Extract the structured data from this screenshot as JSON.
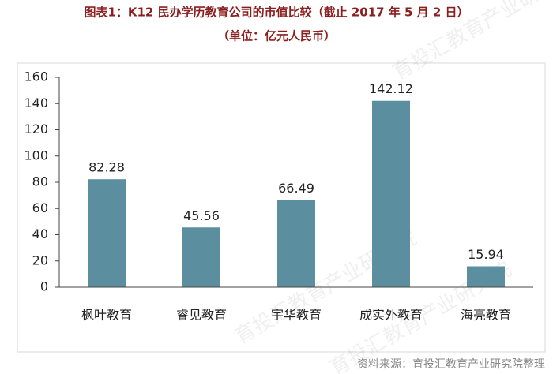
{
  "chart_data": {
    "type": "bar",
    "title": "图表1：K12 民办学历教育公司的市值比较（截止 2017 年 5 月 2 日）",
    "subtitle": "（单位：亿元人民币）",
    "categories": [
      "枫叶教育",
      "睿见教育",
      "宇华教育",
      "成实外教育",
      "海亮教育"
    ],
    "values": [
      82.28,
      45.56,
      66.49,
      142.12,
      15.94
    ],
    "color": "#5b8fa0",
    "ylim": [
      0,
      160
    ],
    "yticks": [
      0,
      20,
      40,
      60,
      80,
      100,
      120,
      140,
      160
    ],
    "grid": false,
    "source": "资料来源：育投汇教育产业研究院整理",
    "watermark": "育投汇教育产业研究院"
  }
}
